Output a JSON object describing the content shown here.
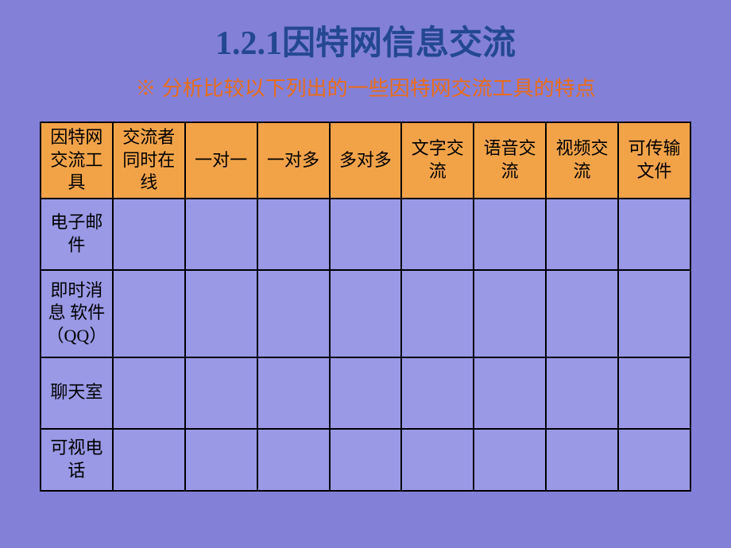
{
  "title": {
    "text": "1.2.1因特网信息交流",
    "color": "#234891",
    "fontsize": 42
  },
  "subtitle": {
    "text": "※ 分析比较以下列出的一些因特网交流工具的特点",
    "color": "#e86c1a",
    "fontsize": 26
  },
  "slide": {
    "background_color": "#8380d8"
  },
  "table": {
    "header_bg": "#f2a348",
    "cell_bg": "#9999e6",
    "border_color": "#000000",
    "columns": [
      "因特网交流工具",
      "交流者同时在线",
      "一对一",
      "一对多",
      "多对多",
      "文字交流",
      "语音交流",
      "视频交流",
      "可传输文件"
    ],
    "rows": [
      {
        "label": "电子邮件",
        "cells": [
          "",
          "",
          "",
          "",
          "",
          "",
          "",
          ""
        ]
      },
      {
        "label": "即时消息 软件（QQ）",
        "cells": [
          "",
          "",
          "",
          "",
          "",
          "",
          "",
          ""
        ]
      },
      {
        "label": "聊天室",
        "cells": [
          "",
          "",
          "",
          "",
          "",
          "",
          "",
          ""
        ]
      },
      {
        "label": "可视电话",
        "cells": [
          "",
          "",
          "",
          "",
          "",
          "",
          "",
          ""
        ]
      }
    ]
  }
}
